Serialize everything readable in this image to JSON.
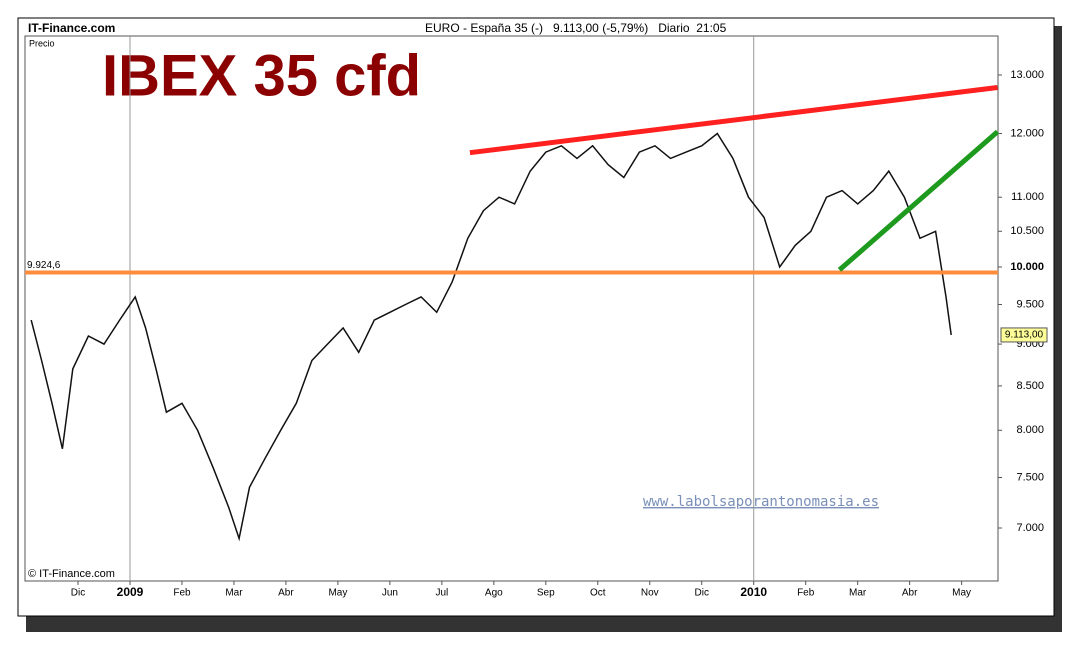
{
  "chart_data": {
    "type": "line",
    "title": "IBEX 35 cfd",
    "source": "IT-Finance.com",
    "header": "EURO - España 35 (-)   9.113,00 (-5,79%)   Diario  21:05",
    "y_label": "Precio",
    "copyright": "© IT-Finance.com",
    "watermark": "www.labolsaporantonomasia.es",
    "log_scale": true,
    "ylim": [
      6511,
      13711
    ],
    "yticks": [
      {
        "value": 7000,
        "label": "7.000"
      },
      {
        "value": 7500,
        "label": "7.500"
      },
      {
        "value": 8000,
        "label": "8.000"
      },
      {
        "value": 8500,
        "label": "8.500"
      },
      {
        "value": 9000,
        "label": "9.000"
      },
      {
        "value": 9500,
        "label": "9.500"
      },
      {
        "value": 10000,
        "label": "10.000"
      },
      {
        "value": 10500,
        "label": "10.500"
      },
      {
        "value": 11000,
        "label": "11.000"
      },
      {
        "value": 12000,
        "label": "12.000"
      },
      {
        "value": 13000,
        "label": "13.000"
      }
    ],
    "xlim": [
      -1.02,
      17.7
    ],
    "xticks": [
      {
        "value": 0,
        "label": "Dic"
      },
      {
        "value": 1,
        "label": "2009"
      },
      {
        "value": 2,
        "label": "Feb"
      },
      {
        "value": 3,
        "label": "Mar"
      },
      {
        "value": 4,
        "label": "Abr"
      },
      {
        "value": 5,
        "label": "May"
      },
      {
        "value": 6,
        "label": "Jun"
      },
      {
        "value": 7,
        "label": "Jul"
      },
      {
        "value": 8,
        "label": "Ago"
      },
      {
        "value": 9,
        "label": "Sep"
      },
      {
        "value": 10,
        "label": "Oct"
      },
      {
        "value": 11,
        "label": "Nov"
      },
      {
        "value": 12,
        "label": "Dic"
      },
      {
        "value": 13,
        "label": "2010"
      },
      {
        "value": 14,
        "label": "Feb"
      },
      {
        "value": 15,
        "label": "Mar"
      },
      {
        "value": 16,
        "label": "Abr"
      },
      {
        "value": 17,
        "label": "May"
      }
    ],
    "year_lines": [
      1,
      13
    ],
    "series": [
      {
        "name": "EURO - España 35",
        "color": "#111111",
        "x": [
          -0.9,
          -0.7,
          -0.5,
          -0.3,
          -0.1,
          0.2,
          0.5,
          0.8,
          1.1,
          1.3,
          1.5,
          1.7,
          2.0,
          2.3,
          2.6,
          2.9,
          3.1,
          3.3,
          3.6,
          3.9,
          4.2,
          4.5,
          4.8,
          5.1,
          5.4,
          5.7,
          6.0,
          6.3,
          6.6,
          6.9,
          7.2,
          7.5,
          7.8,
          8.1,
          8.4,
          8.7,
          9.0,
          9.3,
          9.6,
          9.9,
          10.2,
          10.5,
          10.8,
          11.1,
          11.4,
          11.7,
          12.0,
          12.3,
          12.6,
          12.9,
          13.2,
          13.5,
          13.8,
          14.1,
          14.4,
          14.7,
          15.0,
          15.3,
          15.6,
          15.9,
          16.2,
          16.5,
          16.7,
          16.8
        ],
        "values": [
          9300,
          8800,
          8300,
          7800,
          8700,
          9100,
          9000,
          9300,
          9600,
          9200,
          8700,
          8200,
          8300,
          8000,
          7600,
          7200,
          6900,
          7400,
          7700,
          8000,
          8300,
          8800,
          9000,
          9200,
          8900,
          9300,
          9400,
          9500,
          9600,
          9400,
          9800,
          10400,
          10800,
          11000,
          10900,
          11400,
          11700,
          11800,
          11600,
          11800,
          11500,
          11300,
          11700,
          11800,
          11600,
          11700,
          11800,
          12000,
          11600,
          11000,
          10700,
          10000,
          10300,
          10500,
          11000,
          11100,
          10900,
          11100,
          11400,
          11000,
          10400,
          10500,
          9600,
          9113
        ],
        "value_labels": [
          null,
          null,
          null,
          null,
          null,
          null,
          null,
          null,
          null,
          null,
          null,
          null,
          null,
          null,
          null,
          null,
          null,
          null,
          null,
          null,
          null,
          null,
          null,
          null,
          null,
          null,
          null,
          null,
          null,
          null,
          null,
          null,
          null,
          null,
          null,
          null,
          null,
          null,
          null,
          null,
          null,
          null,
          null,
          null,
          null,
          null,
          null,
          null,
          null,
          null,
          null,
          null,
          null,
          null,
          null,
          null,
          null,
          null,
          null,
          null,
          null,
          null,
          null,
          "9.113,00"
        ]
      }
    ],
    "hline": {
      "value": 9924.6,
      "label": "9.924,6",
      "color": "#ff8c3c"
    },
    "trendlines": [
      {
        "color": "#ff2020",
        "x": [
          7.54,
          17.69
        ],
        "y": [
          11690,
          12780
        ]
      },
      {
        "color": "#1e9a1e",
        "x": [
          14.65,
          17.69
        ],
        "y": [
          9960,
          12030
        ]
      }
    ]
  }
}
